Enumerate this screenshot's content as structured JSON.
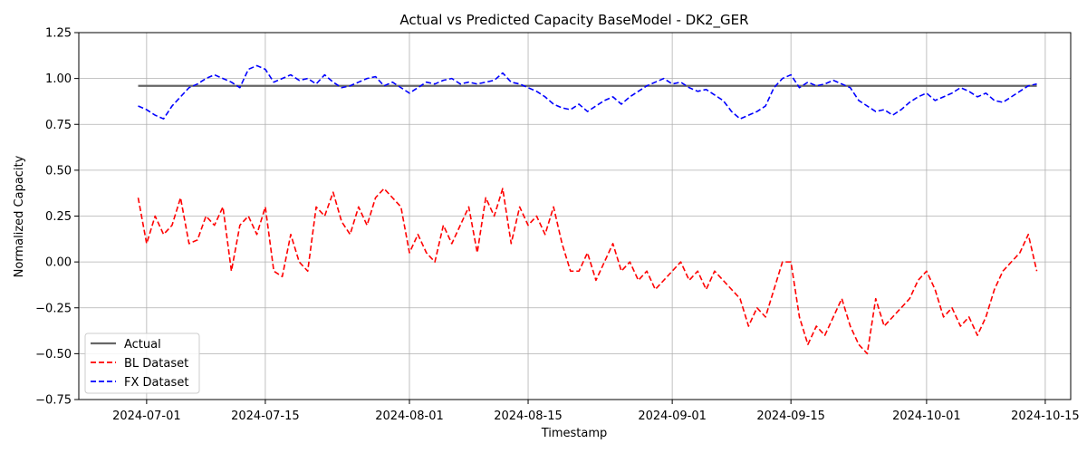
{
  "chart_data": {
    "type": "line",
    "title": "Actual vs Predicted Capacity BaseModel - DK2_GER",
    "xlabel": "Timestamp",
    "ylabel": "Normalized Capacity",
    "xlim": [
      "2024-06-23",
      "2024-10-18"
    ],
    "ylim": [
      -0.75,
      1.25
    ],
    "yticks": [
      -0.75,
      -0.5,
      -0.25,
      0.0,
      0.25,
      0.5,
      0.75,
      1.0,
      1.25
    ],
    "ytick_labels": [
      "−0.75",
      "−0.50",
      "−0.25",
      "0.00",
      "0.25",
      "0.50",
      "0.75",
      "1.00",
      "1.25"
    ],
    "xticks": [
      "2024-07-01",
      "2024-07-15",
      "2024-08-01",
      "2024-08-15",
      "2024-09-01",
      "2024-09-15",
      "2024-10-01",
      "2024-10-15"
    ],
    "grid": true,
    "legend_position": "lower-left",
    "series": [
      {
        "name": "Actual",
        "color": "#666666",
        "style": "solid",
        "points": [
          [
            "2024-06-30",
            0.96
          ],
          [
            "2024-10-14",
            0.96
          ]
        ]
      },
      {
        "name": "BL Dataset",
        "color": "#ff0000",
        "style": "dashed",
        "points": [
          [
            "2024-06-30",
            0.35
          ],
          [
            "2024-07-01",
            0.1
          ],
          [
            "2024-07-02",
            0.25
          ],
          [
            "2024-07-03",
            0.15
          ],
          [
            "2024-07-04",
            0.2
          ],
          [
            "2024-07-05",
            0.35
          ],
          [
            "2024-07-06",
            0.1
          ],
          [
            "2024-07-07",
            0.12
          ],
          [
            "2024-07-08",
            0.25
          ],
          [
            "2024-07-09",
            0.2
          ],
          [
            "2024-07-10",
            0.3
          ],
          [
            "2024-07-11",
            -0.05
          ],
          [
            "2024-07-12",
            0.2
          ],
          [
            "2024-07-13",
            0.25
          ],
          [
            "2024-07-14",
            0.15
          ],
          [
            "2024-07-15",
            0.3
          ],
          [
            "2024-07-16",
            -0.05
          ],
          [
            "2024-07-17",
            -0.08
          ],
          [
            "2024-07-18",
            0.15
          ],
          [
            "2024-07-19",
            0.0
          ],
          [
            "2024-07-20",
            -0.05
          ],
          [
            "2024-07-21",
            0.3
          ],
          [
            "2024-07-22",
            0.25
          ],
          [
            "2024-07-23",
            0.38
          ],
          [
            "2024-07-24",
            0.22
          ],
          [
            "2024-07-25",
            0.15
          ],
          [
            "2024-07-26",
            0.3
          ],
          [
            "2024-07-27",
            0.2
          ],
          [
            "2024-07-28",
            0.35
          ],
          [
            "2024-07-29",
            0.4
          ],
          [
            "2024-07-30",
            0.35
          ],
          [
            "2024-07-31",
            0.3
          ],
          [
            "2024-08-01",
            0.05
          ],
          [
            "2024-08-02",
            0.15
          ],
          [
            "2024-08-03",
            0.05
          ],
          [
            "2024-08-04",
            0.0
          ],
          [
            "2024-08-05",
            0.2
          ],
          [
            "2024-08-06",
            0.1
          ],
          [
            "2024-08-07",
            0.2
          ],
          [
            "2024-08-08",
            0.3
          ],
          [
            "2024-08-09",
            0.05
          ],
          [
            "2024-08-10",
            0.35
          ],
          [
            "2024-08-11",
            0.25
          ],
          [
            "2024-08-12",
            0.4
          ],
          [
            "2024-08-13",
            0.1
          ],
          [
            "2024-08-14",
            0.3
          ],
          [
            "2024-08-15",
            0.2
          ],
          [
            "2024-08-16",
            0.25
          ],
          [
            "2024-08-17",
            0.15
          ],
          [
            "2024-08-18",
            0.3
          ],
          [
            "2024-08-19",
            0.1
          ],
          [
            "2024-08-20",
            -0.05
          ],
          [
            "2024-08-21",
            -0.05
          ],
          [
            "2024-08-22",
            0.05
          ],
          [
            "2024-08-23",
            -0.1
          ],
          [
            "2024-08-24",
            0.0
          ],
          [
            "2024-08-25",
            0.1
          ],
          [
            "2024-08-26",
            -0.05
          ],
          [
            "2024-08-27",
            0.0
          ],
          [
            "2024-08-28",
            -0.1
          ],
          [
            "2024-08-29",
            -0.05
          ],
          [
            "2024-08-30",
            -0.15
          ],
          [
            "2024-08-31",
            -0.1
          ],
          [
            "2024-09-01",
            -0.05
          ],
          [
            "2024-09-02",
            0.0
          ],
          [
            "2024-09-03",
            -0.1
          ],
          [
            "2024-09-04",
            -0.05
          ],
          [
            "2024-09-05",
            -0.15
          ],
          [
            "2024-09-06",
            -0.05
          ],
          [
            "2024-09-07",
            -0.1
          ],
          [
            "2024-09-08",
            -0.15
          ],
          [
            "2024-09-09",
            -0.2
          ],
          [
            "2024-09-10",
            -0.35
          ],
          [
            "2024-09-11",
            -0.25
          ],
          [
            "2024-09-12",
            -0.3
          ],
          [
            "2024-09-13",
            -0.15
          ],
          [
            "2024-09-14",
            0.0
          ],
          [
            "2024-09-15",
            0.0
          ],
          [
            "2024-09-16",
            -0.3
          ],
          [
            "2024-09-17",
            -0.45
          ],
          [
            "2024-09-18",
            -0.35
          ],
          [
            "2024-09-19",
            -0.4
          ],
          [
            "2024-09-20",
            -0.3
          ],
          [
            "2024-09-21",
            -0.2
          ],
          [
            "2024-09-22",
            -0.35
          ],
          [
            "2024-09-23",
            -0.45
          ],
          [
            "2024-09-24",
            -0.5
          ],
          [
            "2024-09-25",
            -0.2
          ],
          [
            "2024-09-26",
            -0.35
          ],
          [
            "2024-09-27",
            -0.3
          ],
          [
            "2024-09-28",
            -0.25
          ],
          [
            "2024-09-29",
            -0.2
          ],
          [
            "2024-09-30",
            -0.1
          ],
          [
            "2024-10-01",
            -0.05
          ],
          [
            "2024-10-02",
            -0.15
          ],
          [
            "2024-10-03",
            -0.3
          ],
          [
            "2024-10-04",
            -0.25
          ],
          [
            "2024-10-05",
            -0.35
          ],
          [
            "2024-10-06",
            -0.3
          ],
          [
            "2024-10-07",
            -0.4
          ],
          [
            "2024-10-08",
            -0.3
          ],
          [
            "2024-10-09",
            -0.15
          ],
          [
            "2024-10-10",
            -0.05
          ],
          [
            "2024-10-11",
            0.0
          ],
          [
            "2024-10-12",
            0.05
          ],
          [
            "2024-10-13",
            0.15
          ],
          [
            "2024-10-14",
            -0.05
          ]
        ]
      },
      {
        "name": "FX Dataset",
        "color": "#0000ff",
        "style": "dashed",
        "points": [
          [
            "2024-06-30",
            0.85
          ],
          [
            "2024-07-01",
            0.83
          ],
          [
            "2024-07-02",
            0.8
          ],
          [
            "2024-07-03",
            0.78
          ],
          [
            "2024-07-04",
            0.85
          ],
          [
            "2024-07-05",
            0.9
          ],
          [
            "2024-07-06",
            0.95
          ],
          [
            "2024-07-07",
            0.97
          ],
          [
            "2024-07-08",
            1.0
          ],
          [
            "2024-07-09",
            1.02
          ],
          [
            "2024-07-10",
            1.0
          ],
          [
            "2024-07-11",
            0.98
          ],
          [
            "2024-07-12",
            0.95
          ],
          [
            "2024-07-13",
            1.05
          ],
          [
            "2024-07-14",
            1.07
          ],
          [
            "2024-07-15",
            1.05
          ],
          [
            "2024-07-16",
            0.98
          ],
          [
            "2024-07-17",
            1.0
          ],
          [
            "2024-07-18",
            1.02
          ],
          [
            "2024-07-19",
            0.99
          ],
          [
            "2024-07-20",
            1.0
          ],
          [
            "2024-07-21",
            0.97
          ],
          [
            "2024-07-22",
            1.02
          ],
          [
            "2024-07-23",
            0.98
          ],
          [
            "2024-07-24",
            0.95
          ],
          [
            "2024-07-25",
            0.96
          ],
          [
            "2024-07-26",
            0.98
          ],
          [
            "2024-07-27",
            1.0
          ],
          [
            "2024-07-28",
            1.01
          ],
          [
            "2024-07-29",
            0.96
          ],
          [
            "2024-07-30",
            0.98
          ],
          [
            "2024-07-31",
            0.95
          ],
          [
            "2024-08-01",
            0.92
          ],
          [
            "2024-08-02",
            0.95
          ],
          [
            "2024-08-03",
            0.98
          ],
          [
            "2024-08-04",
            0.97
          ],
          [
            "2024-08-05",
            0.99
          ],
          [
            "2024-08-06",
            1.0
          ],
          [
            "2024-08-07",
            0.97
          ],
          [
            "2024-08-08",
            0.98
          ],
          [
            "2024-08-09",
            0.97
          ],
          [
            "2024-08-10",
            0.98
          ],
          [
            "2024-08-11",
            0.99
          ],
          [
            "2024-08-12",
            1.03
          ],
          [
            "2024-08-13",
            0.98
          ],
          [
            "2024-08-14",
            0.97
          ],
          [
            "2024-08-15",
            0.95
          ],
          [
            "2024-08-16",
            0.93
          ],
          [
            "2024-08-17",
            0.9
          ],
          [
            "2024-08-18",
            0.86
          ],
          [
            "2024-08-19",
            0.84
          ],
          [
            "2024-08-20",
            0.83
          ],
          [
            "2024-08-21",
            0.86
          ],
          [
            "2024-08-22",
            0.82
          ],
          [
            "2024-08-23",
            0.85
          ],
          [
            "2024-08-24",
            0.88
          ],
          [
            "2024-08-25",
            0.9
          ],
          [
            "2024-08-26",
            0.86
          ],
          [
            "2024-08-27",
            0.9
          ],
          [
            "2024-08-28",
            0.93
          ],
          [
            "2024-08-29",
            0.96
          ],
          [
            "2024-08-30",
            0.98
          ],
          [
            "2024-08-31",
            1.0
          ],
          [
            "2024-09-01",
            0.97
          ],
          [
            "2024-09-02",
            0.98
          ],
          [
            "2024-09-03",
            0.95
          ],
          [
            "2024-09-04",
            0.93
          ],
          [
            "2024-09-05",
            0.94
          ],
          [
            "2024-09-06",
            0.91
          ],
          [
            "2024-09-07",
            0.88
          ],
          [
            "2024-09-08",
            0.82
          ],
          [
            "2024-09-09",
            0.78
          ],
          [
            "2024-09-10",
            0.8
          ],
          [
            "2024-09-11",
            0.82
          ],
          [
            "2024-09-12",
            0.85
          ],
          [
            "2024-09-13",
            0.95
          ],
          [
            "2024-09-14",
            1.0
          ],
          [
            "2024-09-15",
            1.02
          ],
          [
            "2024-09-16",
            0.95
          ],
          [
            "2024-09-17",
            0.98
          ],
          [
            "2024-09-18",
            0.96
          ],
          [
            "2024-09-19",
            0.97
          ],
          [
            "2024-09-20",
            0.99
          ],
          [
            "2024-09-21",
            0.97
          ],
          [
            "2024-09-22",
            0.95
          ],
          [
            "2024-09-23",
            0.88
          ],
          [
            "2024-09-24",
            0.85
          ],
          [
            "2024-09-25",
            0.82
          ],
          [
            "2024-09-26",
            0.83
          ],
          [
            "2024-09-27",
            0.8
          ],
          [
            "2024-09-28",
            0.83
          ],
          [
            "2024-09-29",
            0.87
          ],
          [
            "2024-09-30",
            0.9
          ],
          [
            "2024-10-01",
            0.92
          ],
          [
            "2024-10-02",
            0.88
          ],
          [
            "2024-10-03",
            0.9
          ],
          [
            "2024-10-04",
            0.92
          ],
          [
            "2024-10-05",
            0.95
          ],
          [
            "2024-10-06",
            0.93
          ],
          [
            "2024-10-07",
            0.9
          ],
          [
            "2024-10-08",
            0.92
          ],
          [
            "2024-10-09",
            0.88
          ],
          [
            "2024-10-10",
            0.87
          ],
          [
            "2024-10-11",
            0.9
          ],
          [
            "2024-10-12",
            0.93
          ],
          [
            "2024-10-13",
            0.96
          ],
          [
            "2024-10-14",
            0.97
          ]
        ]
      }
    ]
  }
}
